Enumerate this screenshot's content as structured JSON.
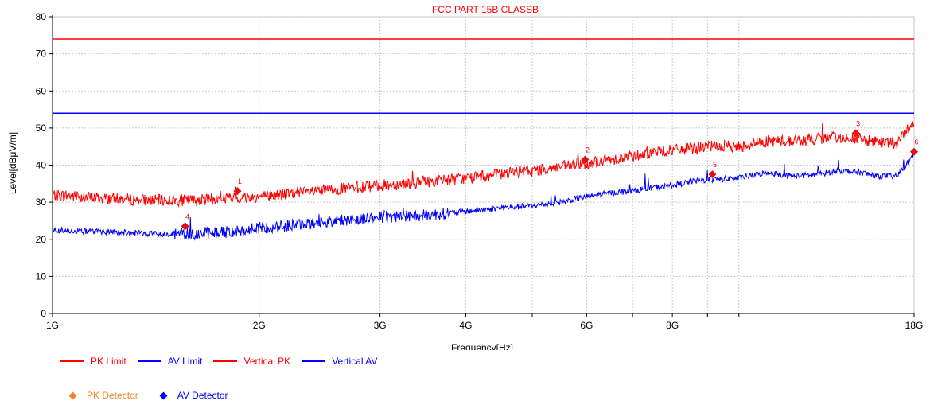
{
  "chart_data": {
    "type": "line",
    "title": "FCC PART 15B CLASSB",
    "xlabel": "Frequency[Hz]",
    "ylabel": "Level[dBμV/m]",
    "x_scale": "log",
    "xlim": [
      1,
      18
    ],
    "ylim": [
      0,
      80
    ],
    "x_tick_labels": [
      {
        "value": 1,
        "label": "1G"
      },
      {
        "value": 2,
        "label": "2G"
      },
      {
        "value": 3,
        "label": "3G"
      },
      {
        "value": 4,
        "label": "4G"
      },
      {
        "value": 6,
        "label": "6G"
      },
      {
        "value": 8,
        "label": "8G"
      },
      {
        "value": 18,
        "label": "18G"
      }
    ],
    "x_minor_grid": [
      5,
      7,
      9,
      10
    ],
    "y_ticks": [
      0,
      10,
      20,
      30,
      40,
      50,
      60,
      70,
      80
    ],
    "grid": true,
    "legend_position": "bottom-left",
    "colors": {
      "pk_limit": "#ff0000",
      "av_limit": "#0000ff",
      "vertical_pk": "#ff0000",
      "vertical_av": "#0000ff",
      "pk_detector": "#f5822a",
      "av_detector": "#0000ff",
      "marker": "#e31010",
      "title": "#ff0000"
    },
    "series": [
      {
        "name": "PK Limit",
        "x": [
          1,
          18
        ],
        "values": [
          74,
          74
        ]
      },
      {
        "name": "AV Limit",
        "x": [
          1,
          18
        ],
        "values": [
          54,
          54
        ]
      },
      {
        "name": "Vertical PK",
        "x": [
          1.0,
          1.2,
          1.4,
          1.6,
          1.8,
          2.0,
          2.3,
          2.6,
          3.0,
          3.5,
          4.0,
          4.5,
          5.0,
          5.5,
          6.0,
          6.5,
          7.0,
          7.5,
          8.0,
          8.5,
          9.0,
          10.0,
          11.0,
          12.0,
          13.0,
          14.0,
          15.0,
          16.0,
          17.0,
          18.0
        ],
        "values": [
          32,
          31,
          30.5,
          30.5,
          31,
          31.5,
          32.5,
          33.5,
          34.5,
          35.5,
          36.5,
          37.5,
          38.5,
          39.5,
          40.5,
          41.5,
          42.5,
          43.5,
          44,
          44.5,
          45,
          45,
          46.5,
          46.5,
          47,
          47.5,
          47,
          46,
          46,
          52
        ]
      },
      {
        "name": "Vertical AV",
        "x": [
          1.0,
          1.2,
          1.4,
          1.6,
          1.8,
          2.0,
          2.3,
          2.6,
          3.0,
          3.5,
          4.0,
          4.5,
          5.0,
          5.5,
          6.0,
          6.5,
          7.0,
          7.5,
          8.0,
          8.5,
          9.0,
          10.0,
          11.0,
          12.0,
          13.0,
          14.0,
          15.0,
          16.0,
          17.0,
          18.0
        ],
        "values": [
          22.5,
          22,
          21.5,
          21.5,
          22,
          23,
          24,
          25,
          26,
          26.5,
          27.5,
          28.5,
          29,
          30,
          31.5,
          32.5,
          33,
          34,
          34.5,
          35.5,
          36,
          36.5,
          38,
          37,
          37.5,
          38.5,
          38,
          37,
          37,
          43
        ]
      }
    ],
    "markers": [
      {
        "label": "1",
        "x": 1.86,
        "value": 33.0,
        "detector": "PK Detector"
      },
      {
        "label": "2",
        "x": 5.97,
        "value": 41.5,
        "detector": "PK Detector"
      },
      {
        "label": "3",
        "x": 14.8,
        "value": 48.6,
        "detector": "PK Detector"
      },
      {
        "label": "4",
        "x": 1.56,
        "value": 23.5,
        "detector": "AV Detector"
      },
      {
        "label": "5",
        "x": 9.15,
        "value": 37.5,
        "detector": "AV Detector"
      },
      {
        "label": "6",
        "x": 18.0,
        "value": 43.6,
        "detector": "AV Detector"
      }
    ]
  },
  "legend": {
    "row1": [
      {
        "name": "PK Limit",
        "color": "#ff0000"
      },
      {
        "name": "AV Limit",
        "color": "#0000ff"
      },
      {
        "name": "Vertical PK",
        "color": "#ff0000"
      },
      {
        "name": "Vertical AV",
        "color": "#0000ff"
      }
    ],
    "row2": [
      {
        "name": "PK Detector",
        "color": "#f5822a"
      },
      {
        "name": "AV Detector",
        "color": "#0000ff"
      }
    ]
  }
}
